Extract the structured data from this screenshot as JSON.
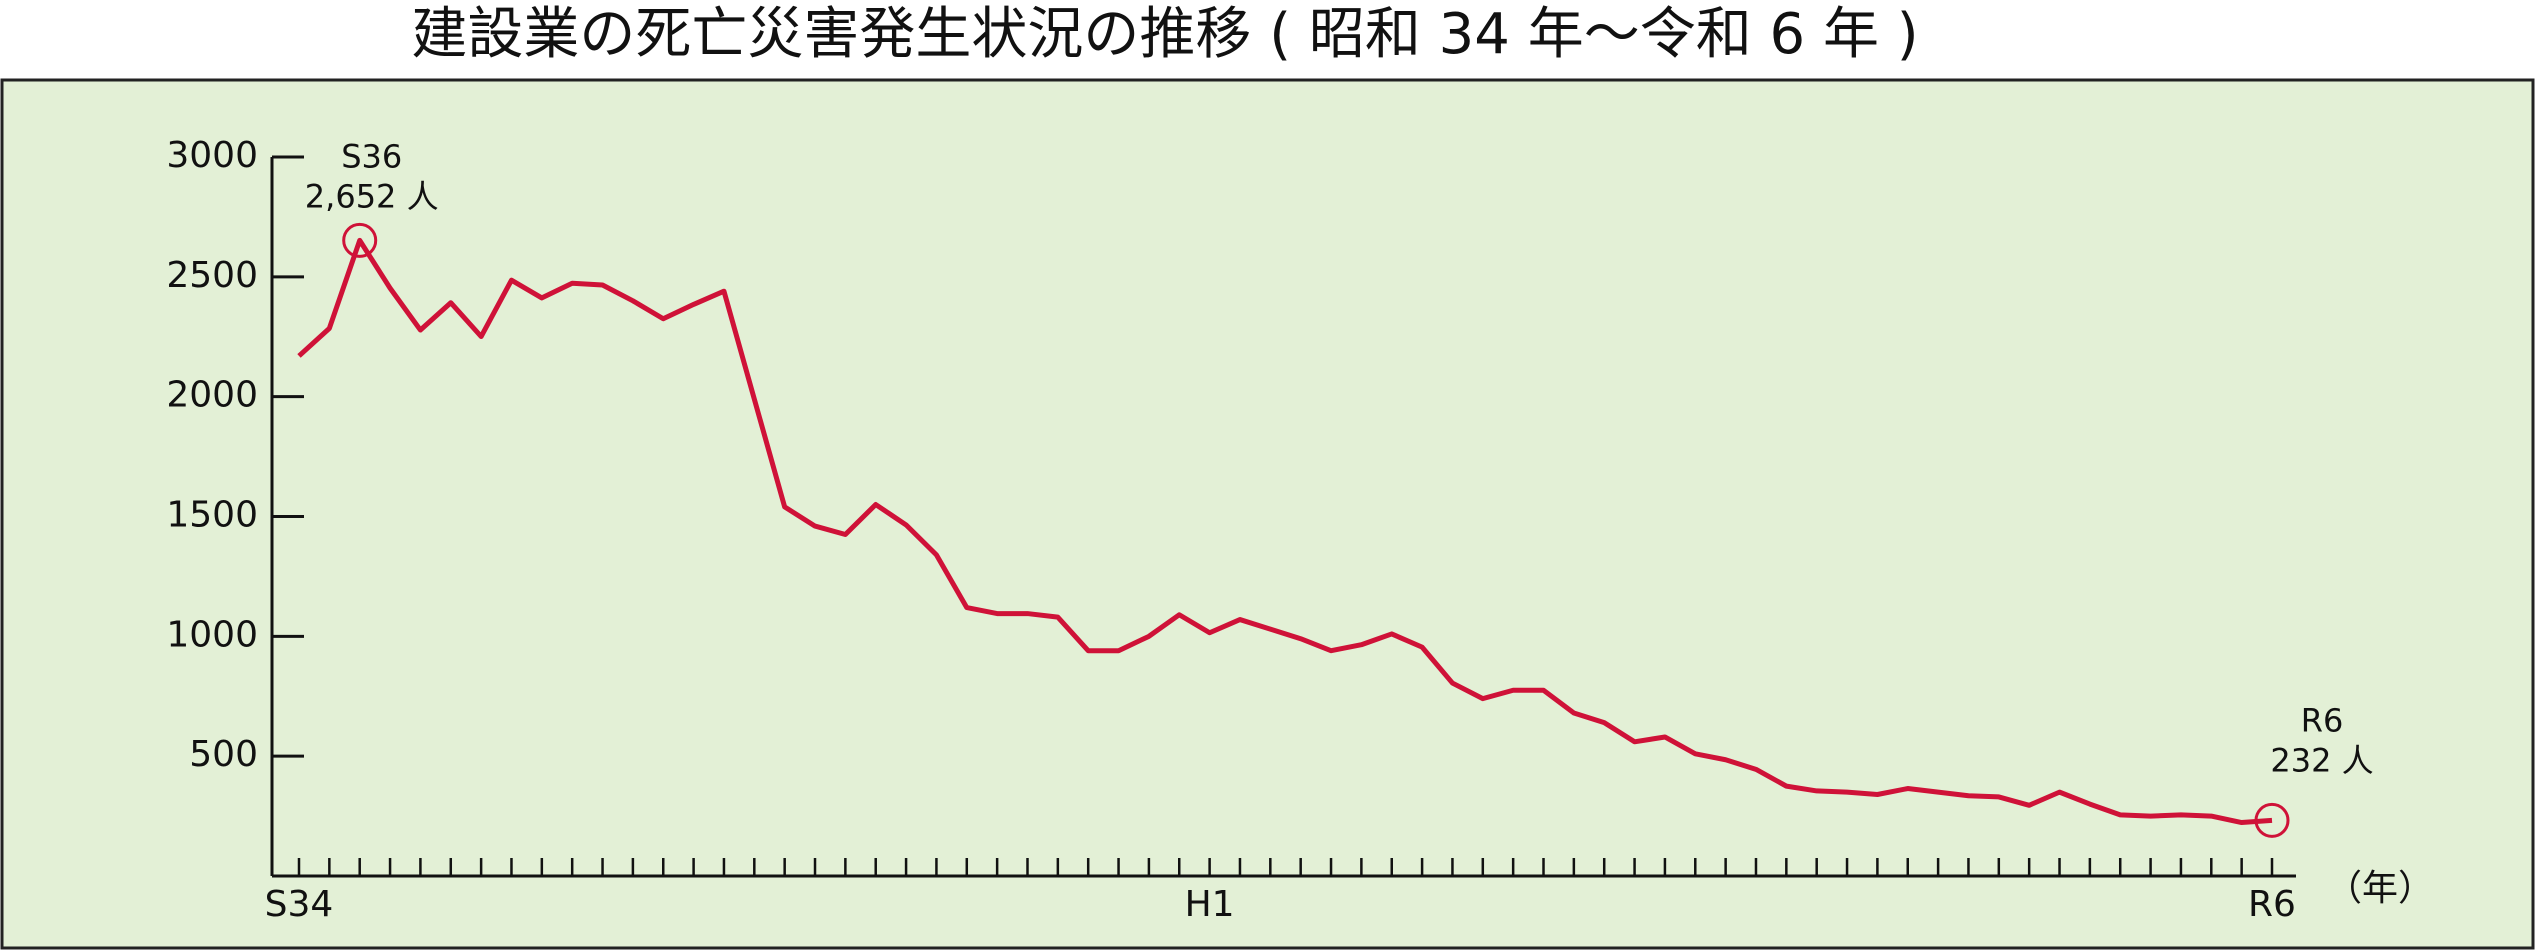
{
  "chart_data": {
    "type": "line",
    "title": "建設業の死亡災害発生状況の推移 ( 昭和 34 年～令和 6 年 )",
    "x_unit": "（年）",
    "categories": [
      "S34",
      null,
      null,
      null,
      null,
      null,
      null,
      null,
      null,
      null,
      null,
      null,
      null,
      null,
      null,
      null,
      null,
      null,
      null,
      null,
      null,
      null,
      null,
      null,
      null,
      null,
      null,
      null,
      null,
      null,
      "H1",
      null,
      null,
      null,
      null,
      null,
      null,
      null,
      null,
      null,
      null,
      null,
      null,
      null,
      null,
      null,
      null,
      null,
      null,
      null,
      null,
      null,
      null,
      null,
      null,
      null,
      null,
      null,
      null,
      null,
      null,
      null,
      null,
      null,
      null,
      "R6"
    ],
    "values": [
      2170,
      2285,
      2652,
      2453,
      2278,
      2392,
      2251,
      2486,
      2412,
      2473,
      2466,
      2400,
      2325,
      2385,
      2440,
      1990,
      1540,
      1460,
      1425,
      1550,
      1465,
      1340,
      1120,
      1095,
      1095,
      1080,
      940,
      940,
      1000,
      1090,
      1015,
      1070,
      1030,
      990,
      940,
      965,
      1010,
      955,
      805,
      740,
      775,
      775,
      680,
      640,
      560,
      580,
      510,
      485,
      445,
      375,
      355,
      350,
      340,
      365,
      350,
      335,
      330,
      295,
      350,
      300,
      255,
      250,
      255,
      250,
      223,
      232
    ],
    "color": "#cf1238",
    "background": "#e3f0d6",
    "ylim": [
      0,
      3000
    ],
    "yticks": [
      500,
      1000,
      1500,
      2000,
      2500,
      3000
    ],
    "annotations": [
      [
        "S36",
        "2,652 人"
      ],
      [
        "R6",
        "232 人"
      ]
    ]
  }
}
